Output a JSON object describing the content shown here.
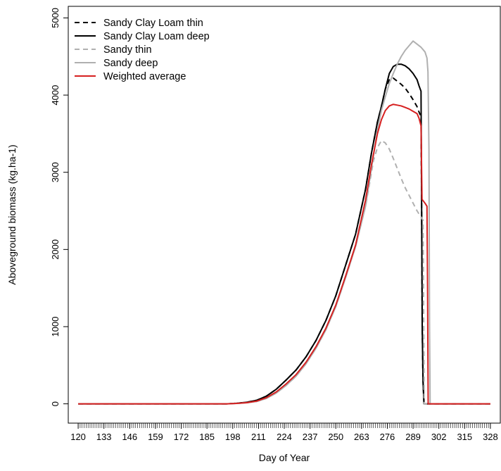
{
  "chart_data": {
    "type": "line",
    "title": "",
    "xlabel": "Day of Year",
    "ylabel": "Aboveground biomass (kg.ha-1)",
    "xlim": [
      115,
      333
    ],
    "ylim": [
      -250,
      5150
    ],
    "x_ticks": [
      120,
      133,
      146,
      159,
      172,
      185,
      198,
      211,
      224,
      237,
      250,
      263,
      276,
      289,
      302,
      315,
      328
    ],
    "y_ticks": [
      0,
      1000,
      2000,
      3000,
      4000,
      5000
    ],
    "minor_tick_range": [
      121,
      327
    ],
    "grid": false,
    "legend_position": "top-left",
    "series": [
      {
        "name": "Sandy Clay Loam thin",
        "color": "#000000",
        "dash": "dashed",
        "points": [
          [
            120,
            0
          ],
          [
            195,
            0
          ],
          [
            200,
            8
          ],
          [
            205,
            20
          ],
          [
            210,
            45
          ],
          [
            215,
            100
          ],
          [
            220,
            190
          ],
          [
            225,
            310
          ],
          [
            230,
            440
          ],
          [
            235,
            610
          ],
          [
            240,
            820
          ],
          [
            245,
            1080
          ],
          [
            250,
            1400
          ],
          [
            255,
            1800
          ],
          [
            260,
            2200
          ],
          [
            265,
            2780
          ],
          [
            268,
            3250
          ],
          [
            271,
            3650
          ],
          [
            273,
            3850
          ],
          [
            275,
            4080
          ],
          [
            277,
            4200
          ],
          [
            279,
            4220
          ],
          [
            281,
            4180
          ],
          [
            283,
            4140
          ],
          [
            285,
            4090
          ],
          [
            287,
            4020
          ],
          [
            289,
            3940
          ],
          [
            291,
            3850
          ],
          [
            292,
            3780
          ],
          [
            293,
            3720
          ],
          [
            293.3,
            2600
          ],
          [
            293.6,
            1000
          ],
          [
            294,
            300
          ],
          [
            294.5,
            0
          ],
          [
            328,
            0
          ]
        ]
      },
      {
        "name": "Sandy Clay Loam deep",
        "color": "#000000",
        "dash": "solid",
        "points": [
          [
            120,
            0
          ],
          [
            195,
            0
          ],
          [
            200,
            8
          ],
          [
            205,
            20
          ],
          [
            210,
            45
          ],
          [
            215,
            100
          ],
          [
            220,
            190
          ],
          [
            225,
            310
          ],
          [
            230,
            440
          ],
          [
            235,
            610
          ],
          [
            240,
            820
          ],
          [
            245,
            1080
          ],
          [
            250,
            1400
          ],
          [
            255,
            1800
          ],
          [
            260,
            2200
          ],
          [
            265,
            2780
          ],
          [
            268,
            3250
          ],
          [
            271,
            3650
          ],
          [
            273,
            3850
          ],
          [
            275,
            4080
          ],
          [
            277,
            4280
          ],
          [
            279,
            4370
          ],
          [
            281,
            4400
          ],
          [
            283,
            4400
          ],
          [
            285,
            4380
          ],
          [
            287,
            4340
          ],
          [
            289,
            4280
          ],
          [
            291,
            4200
          ],
          [
            292,
            4120
          ],
          [
            293,
            4050
          ],
          [
            293.3,
            2600
          ],
          [
            293.6,
            1000
          ],
          [
            294,
            300
          ],
          [
            294.5,
            0
          ],
          [
            328,
            0
          ]
        ]
      },
      {
        "name": "Sandy thin",
        "color": "#b0b0b0",
        "dash": "dashed",
        "points": [
          [
            120,
            0
          ],
          [
            195,
            0
          ],
          [
            200,
            5
          ],
          [
            205,
            15
          ],
          [
            210,
            30
          ],
          [
            215,
            70
          ],
          [
            220,
            140
          ],
          [
            225,
            240
          ],
          [
            230,
            360
          ],
          [
            235,
            520
          ],
          [
            240,
            720
          ],
          [
            245,
            960
          ],
          [
            250,
            1260
          ],
          [
            255,
            1640
          ],
          [
            260,
            2040
          ],
          [
            265,
            2560
          ],
          [
            267,
            2850
          ],
          [
            269,
            3150
          ],
          [
            271,
            3320
          ],
          [
            273,
            3410
          ],
          [
            275,
            3380
          ],
          [
            277,
            3300
          ],
          [
            279,
            3180
          ],
          [
            281,
            3050
          ],
          [
            283,
            2920
          ],
          [
            285,
            2800
          ],
          [
            287,
            2700
          ],
          [
            289,
            2600
          ],
          [
            291,
            2500
          ],
          [
            293,
            2420
          ],
          [
            294,
            2380
          ],
          [
            294.3,
            1200
          ],
          [
            294.6,
            0
          ],
          [
            328,
            0
          ]
        ]
      },
      {
        "name": "Sandy deep",
        "color": "#b0b0b0",
        "dash": "solid",
        "points": [
          [
            120,
            0
          ],
          [
            195,
            0
          ],
          [
            200,
            5
          ],
          [
            205,
            15
          ],
          [
            210,
            30
          ],
          [
            215,
            70
          ],
          [
            220,
            140
          ],
          [
            225,
            240
          ],
          [
            230,
            360
          ],
          [
            235,
            520
          ],
          [
            240,
            720
          ],
          [
            245,
            960
          ],
          [
            250,
            1260
          ],
          [
            255,
            1640
          ],
          [
            260,
            2040
          ],
          [
            265,
            2560
          ],
          [
            268,
            3050
          ],
          [
            271,
            3550
          ],
          [
            273,
            3800
          ],
          [
            275,
            3980
          ],
          [
            277,
            4150
          ],
          [
            279,
            4280
          ],
          [
            281,
            4400
          ],
          [
            283,
            4500
          ],
          [
            285,
            4580
          ],
          [
            287,
            4640
          ],
          [
            289,
            4700
          ],
          [
            291,
            4660
          ],
          [
            293,
            4620
          ],
          [
            295,
            4560
          ],
          [
            296,
            4480
          ],
          [
            296.5,
            4300
          ],
          [
            297,
            3300
          ],
          [
            297.3,
            1000
          ],
          [
            297.6,
            0
          ],
          [
            328,
            0
          ]
        ]
      },
      {
        "name": "Weighted average",
        "color": "#d62020",
        "dash": "solid",
        "points": [
          [
            120,
            0
          ],
          [
            195,
            0
          ],
          [
            200,
            5
          ],
          [
            205,
            15
          ],
          [
            210,
            35
          ],
          [
            215,
            80
          ],
          [
            220,
            155
          ],
          [
            225,
            260
          ],
          [
            230,
            380
          ],
          [
            235,
            540
          ],
          [
            240,
            740
          ],
          [
            245,
            980
          ],
          [
            250,
            1280
          ],
          [
            255,
            1660
          ],
          [
            260,
            2060
          ],
          [
            265,
            2640
          ],
          [
            268,
            3100
          ],
          [
            271,
            3500
          ],
          [
            273,
            3680
          ],
          [
            275,
            3800
          ],
          [
            277,
            3860
          ],
          [
            279,
            3880
          ],
          [
            281,
            3870
          ],
          [
            283,
            3860
          ],
          [
            285,
            3840
          ],
          [
            287,
            3820
          ],
          [
            289,
            3790
          ],
          [
            291,
            3760
          ],
          [
            292,
            3700
          ],
          [
            293,
            3600
          ],
          [
            293.5,
            2650
          ],
          [
            295,
            2600
          ],
          [
            296,
            2560
          ],
          [
            296.3,
            1500
          ],
          [
            296.6,
            0
          ],
          [
            328,
            0
          ]
        ]
      }
    ]
  }
}
